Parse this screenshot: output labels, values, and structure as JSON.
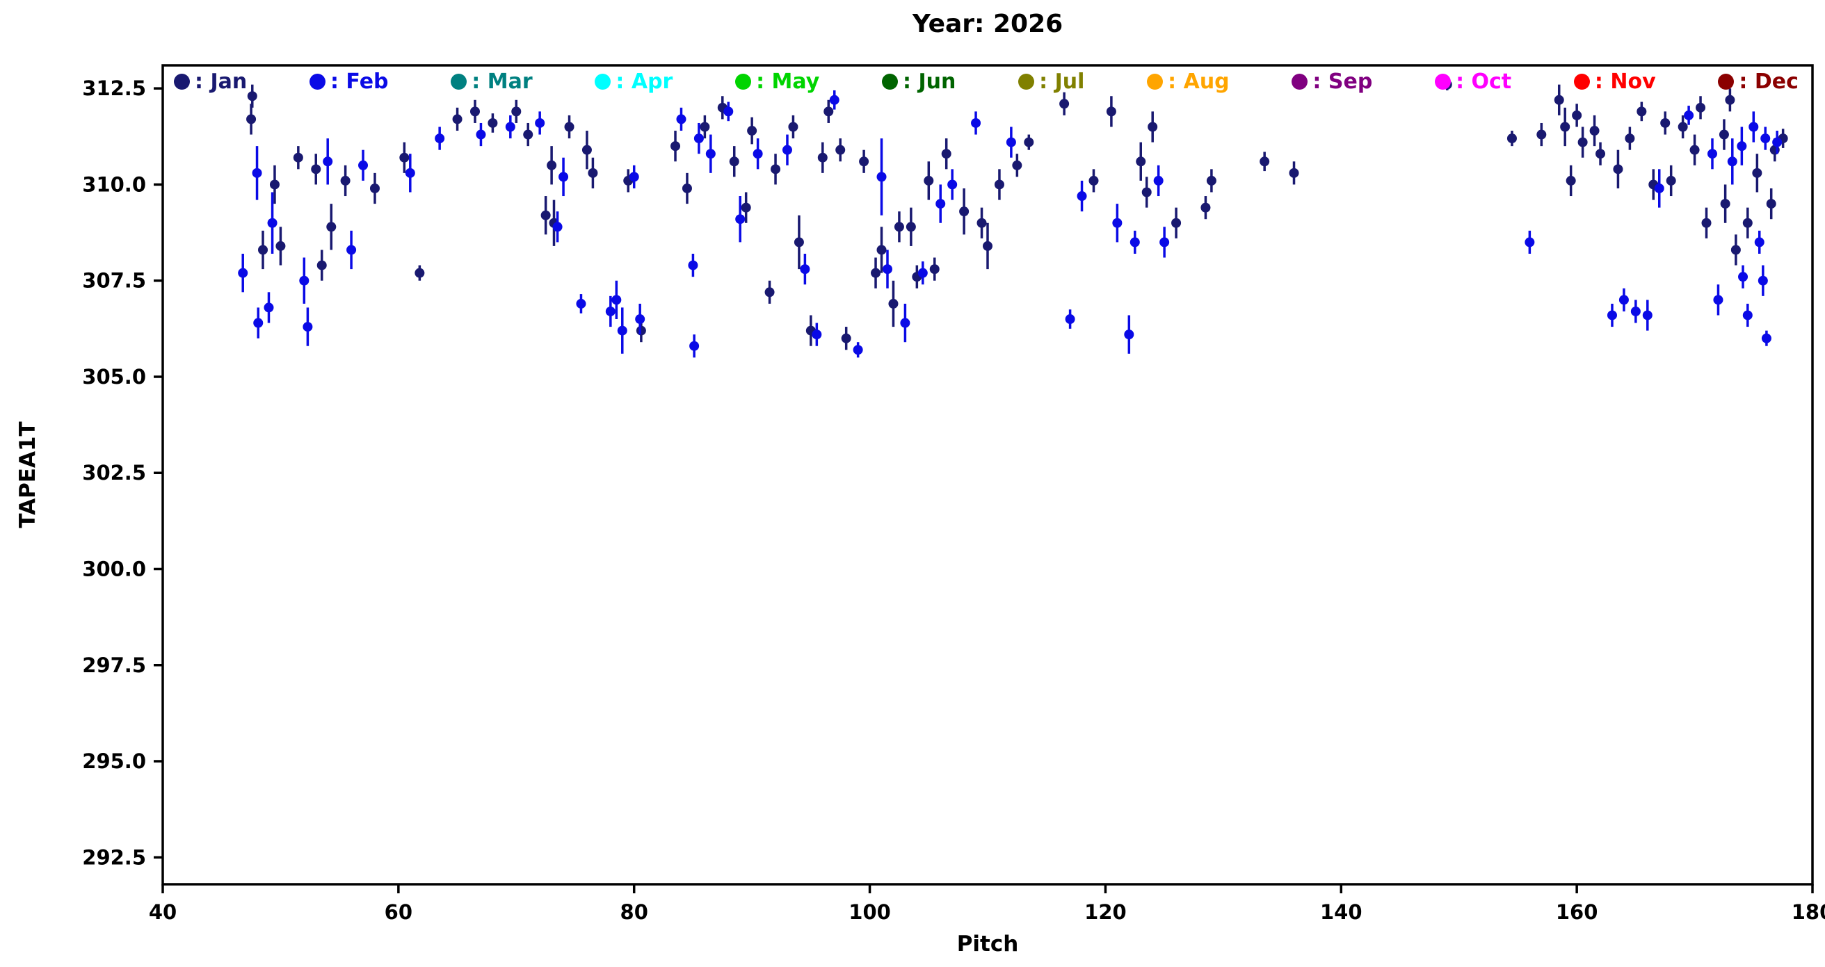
{
  "chart_data": {
    "type": "scatter",
    "title": "Year: 2026",
    "xlabel": "Pitch",
    "ylabel": "TAPEA1T",
    "xlim": [
      40,
      180
    ],
    "ylim": [
      291.8,
      313.1
    ],
    "xticks": [
      40,
      60,
      80,
      100,
      120,
      140,
      160,
      180
    ],
    "yticks": [
      292.5,
      295.0,
      297.5,
      300.0,
      302.5,
      305.0,
      307.5,
      310.0,
      312.5
    ],
    "grid": false,
    "error_bars": true,
    "legend_position": "top-inside",
    "series": [
      {
        "name": "Jan",
        "color": "#191970",
        "points": [
          [
            47.5,
            311.7,
            0.4
          ],
          [
            47.6,
            312.3,
            0.3
          ],
          [
            48.5,
            308.3,
            0.5
          ],
          [
            49.5,
            310.0,
            0.5
          ],
          [
            50,
            308.4,
            0.5
          ],
          [
            51.5,
            310.7,
            0.3
          ],
          [
            53,
            310.4,
            0.4
          ],
          [
            53.5,
            307.9,
            0.4
          ],
          [
            54.3,
            308.9,
            0.6
          ],
          [
            55.5,
            310.1,
            0.4
          ],
          [
            58,
            309.9,
            0.4
          ],
          [
            60.5,
            310.7,
            0.4
          ],
          [
            61.8,
            307.7,
            0.2
          ],
          [
            65,
            311.7,
            0.3
          ],
          [
            66.5,
            311.9,
            0.3
          ],
          [
            68,
            311.6,
            0.25
          ],
          [
            70,
            311.9,
            0.3
          ],
          [
            71,
            311.3,
            0.3
          ],
          [
            72.5,
            309.2,
            0.5
          ],
          [
            73,
            310.5,
            0.5
          ],
          [
            73.2,
            309.0,
            0.6
          ],
          [
            74.5,
            311.5,
            0.3
          ],
          [
            76,
            310.9,
            0.5
          ],
          [
            76.5,
            310.3,
            0.4
          ],
          [
            79.5,
            310.1,
            0.3
          ],
          [
            80.6,
            306.2,
            0.3
          ],
          [
            83.5,
            311.0,
            0.4
          ],
          [
            84.5,
            309.9,
            0.4
          ],
          [
            86,
            311.5,
            0.3
          ],
          [
            87.5,
            312.0,
            0.3
          ],
          [
            88.5,
            310.6,
            0.4
          ],
          [
            89.5,
            309.4,
            0.4
          ],
          [
            90,
            311.4,
            0.35
          ],
          [
            91.5,
            307.2,
            0.3
          ],
          [
            92,
            310.4,
            0.4
          ],
          [
            93.5,
            311.5,
            0.3
          ],
          [
            94,
            308.5,
            0.7
          ],
          [
            95,
            306.2,
            0.4
          ],
          [
            96,
            310.7,
            0.4
          ],
          [
            96.5,
            311.9,
            0.3
          ],
          [
            97.5,
            310.9,
            0.3
          ],
          [
            98,
            306.0,
            0.3
          ],
          [
            99.5,
            310.6,
            0.3
          ],
          [
            100.5,
            307.7,
            0.4
          ],
          [
            101,
            308.3,
            0.6
          ],
          [
            102,
            306.9,
            0.6
          ],
          [
            102.5,
            308.9,
            0.4
          ],
          [
            103.5,
            308.9,
            0.5
          ],
          [
            104,
            307.6,
            0.3
          ],
          [
            105,
            310.1,
            0.5
          ],
          [
            105.5,
            307.8,
            0.3
          ],
          [
            106.5,
            310.8,
            0.4
          ],
          [
            108,
            309.3,
            0.6
          ],
          [
            109.5,
            309.0,
            0.4
          ],
          [
            110,
            308.4,
            0.6
          ],
          [
            111,
            310.0,
            0.4
          ],
          [
            112.5,
            310.5,
            0.3
          ],
          [
            113.5,
            311.1,
            0.2
          ],
          [
            116.5,
            312.1,
            0.3
          ],
          [
            119,
            310.1,
            0.3
          ],
          [
            120.5,
            311.9,
            0.4
          ],
          [
            123,
            310.6,
            0.5
          ],
          [
            123.5,
            309.8,
            0.4
          ],
          [
            124,
            311.5,
            0.4
          ],
          [
            126,
            309.0,
            0.4
          ],
          [
            128.5,
            309.4,
            0.3
          ],
          [
            129,
            310.1,
            0.3
          ],
          [
            133.5,
            310.6,
            0.25
          ],
          [
            136,
            310.3,
            0.3
          ],
          [
            149,
            312.6,
            0.15
          ],
          [
            154.5,
            311.2,
            0.2
          ],
          [
            157,
            311.3,
            0.3
          ],
          [
            158.5,
            312.2,
            0.4
          ],
          [
            159,
            311.5,
            0.5
          ],
          [
            159.5,
            310.1,
            0.4
          ],
          [
            160,
            311.8,
            0.3
          ],
          [
            160.5,
            311.1,
            0.4
          ],
          [
            161.5,
            311.4,
            0.4
          ],
          [
            162,
            310.8,
            0.3
          ],
          [
            163.5,
            310.4,
            0.5
          ],
          [
            164.5,
            311.2,
            0.3
          ],
          [
            165.5,
            311.9,
            0.25
          ],
          [
            166.5,
            310.0,
            0.4
          ],
          [
            167.5,
            311.6,
            0.3
          ],
          [
            168,
            310.1,
            0.4
          ],
          [
            169,
            311.5,
            0.3
          ],
          [
            170,
            310.9,
            0.4
          ],
          [
            170.5,
            312.0,
            0.3
          ],
          [
            171,
            309.0,
            0.4
          ],
          [
            172.5,
            311.3,
            0.4
          ],
          [
            172.6,
            309.5,
            0.5
          ],
          [
            173,
            312.2,
            0.3
          ],
          [
            173.5,
            308.3,
            0.4
          ],
          [
            174.5,
            309.0,
            0.4
          ],
          [
            175.3,
            310.3,
            0.5
          ],
          [
            176.5,
            309.5,
            0.4
          ],
          [
            176.8,
            310.9,
            0.3
          ],
          [
            177.5,
            311.2,
            0.25
          ]
        ]
      },
      {
        "name": "Feb",
        "color": "#0a0ae6",
        "points": [
          [
            46.8,
            307.7,
            0.5
          ],
          [
            48,
            310.3,
            0.7
          ],
          [
            48.1,
            306.4,
            0.4
          ],
          [
            49,
            306.8,
            0.4
          ],
          [
            49.3,
            309.0,
            0.8
          ],
          [
            52,
            307.5,
            0.6
          ],
          [
            52.3,
            306.3,
            0.5
          ],
          [
            54,
            310.6,
            0.6
          ],
          [
            56,
            308.3,
            0.5
          ],
          [
            57,
            310.5,
            0.4
          ],
          [
            61,
            310.3,
            0.5
          ],
          [
            63.5,
            311.2,
            0.3
          ],
          [
            67,
            311.3,
            0.3
          ],
          [
            69.5,
            311.5,
            0.3
          ],
          [
            72,
            311.6,
            0.3
          ],
          [
            73.5,
            308.9,
            0.4
          ],
          [
            74,
            310.2,
            0.5
          ],
          [
            75.5,
            306.9,
            0.25
          ],
          [
            78,
            306.7,
            0.4
          ],
          [
            78.5,
            307.0,
            0.5
          ],
          [
            79,
            306.2,
            0.6
          ],
          [
            80,
            310.2,
            0.3
          ],
          [
            80.5,
            306.5,
            0.4
          ],
          [
            84,
            311.7,
            0.3
          ],
          [
            85,
            307.9,
            0.3
          ],
          [
            85.1,
            305.8,
            0.3
          ],
          [
            85.5,
            311.2,
            0.4
          ],
          [
            86.5,
            310.8,
            0.5
          ],
          [
            88,
            311.9,
            0.25
          ],
          [
            89,
            309.1,
            0.6
          ],
          [
            90.5,
            310.8,
            0.4
          ],
          [
            93,
            310.9,
            0.4
          ],
          [
            94.5,
            307.8,
            0.4
          ],
          [
            95.5,
            306.1,
            0.3
          ],
          [
            97,
            312.2,
            0.25
          ],
          [
            99,
            305.7,
            0.2
          ],
          [
            101,
            310.2,
            1.0
          ],
          [
            101.5,
            307.8,
            0.5
          ],
          [
            103,
            306.4,
            0.5
          ],
          [
            104.5,
            307.7,
            0.3
          ],
          [
            106,
            309.5,
            0.5
          ],
          [
            107,
            310.0,
            0.4
          ],
          [
            109,
            311.6,
            0.3
          ],
          [
            112,
            311.1,
            0.4
          ],
          [
            117,
            306.5,
            0.25
          ],
          [
            118,
            309.7,
            0.4
          ],
          [
            121,
            309.0,
            0.5
          ],
          [
            122,
            306.1,
            0.5
          ],
          [
            122.5,
            308.5,
            0.3
          ],
          [
            124.5,
            310.1,
            0.4
          ],
          [
            125,
            308.5,
            0.4
          ],
          [
            156,
            308.5,
            0.3
          ],
          [
            163,
            306.6,
            0.3
          ],
          [
            164,
            307.0,
            0.3
          ],
          [
            165,
            306.7,
            0.3
          ],
          [
            166,
            306.6,
            0.4
          ],
          [
            167,
            309.9,
            0.5
          ],
          [
            169.5,
            311.8,
            0.25
          ],
          [
            171.5,
            310.8,
            0.4
          ],
          [
            172,
            307.0,
            0.4
          ],
          [
            173.2,
            310.6,
            0.6
          ],
          [
            174,
            311.0,
            0.5
          ],
          [
            174.1,
            307.6,
            0.3
          ],
          [
            174.5,
            306.6,
            0.3
          ],
          [
            175,
            311.5,
            0.4
          ],
          [
            175.5,
            308.5,
            0.3
          ],
          [
            175.8,
            307.5,
            0.4
          ],
          [
            176,
            311.2,
            0.3
          ],
          [
            176.1,
            306.0,
            0.2
          ],
          [
            177,
            311.1,
            0.3
          ]
        ]
      },
      {
        "name": "Mar",
        "color": "#008080",
        "points": []
      },
      {
        "name": "Apr",
        "color": "#00ffff",
        "points": []
      },
      {
        "name": "May",
        "color": "#00d400",
        "points": []
      },
      {
        "name": "Jun",
        "color": "#006400",
        "points": []
      },
      {
        "name": "Jul",
        "color": "#808000",
        "points": []
      },
      {
        "name": "Aug",
        "color": "#ffa500",
        "points": []
      },
      {
        "name": "Sep",
        "color": "#800080",
        "points": []
      },
      {
        "name": "Oct",
        "color": "#ff00ff",
        "points": []
      },
      {
        "name": "Nov",
        "color": "#ff0000",
        "points": []
      },
      {
        "name": "Dec",
        "color": "#8b0000",
        "points": []
      }
    ]
  }
}
